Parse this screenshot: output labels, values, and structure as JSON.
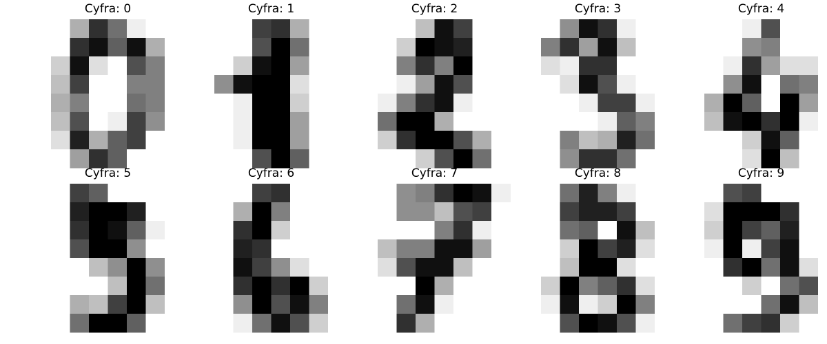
{
  "chart_data": {
    "type": "heatmap",
    "colormap": "gray_r",
    "value_range": [
      0,
      16
    ],
    "axes": "off",
    "grid": false,
    "layout": {
      "rows": 2,
      "cols": 5
    },
    "panels": [
      {
        "title": "Cyfra: 0",
        "pixels": [
          [
            0,
            0,
            5,
            13,
            9,
            1,
            0,
            0
          ],
          [
            0,
            0,
            13,
            15,
            10,
            15,
            5,
            0
          ],
          [
            0,
            3,
            15,
            2,
            0,
            11,
            8,
            0
          ],
          [
            0,
            4,
            12,
            0,
            0,
            8,
            8,
            0
          ],
          [
            0,
            5,
            8,
            0,
            0,
            9,
            8,
            0
          ],
          [
            0,
            4,
            11,
            0,
            1,
            12,
            7,
            0
          ],
          [
            0,
            2,
            14,
            5,
            10,
            12,
            0,
            0
          ],
          [
            0,
            0,
            6,
            13,
            10,
            0,
            0,
            0
          ]
        ]
      },
      {
        "title": "Cyfra: 1",
        "pixels": [
          [
            0,
            0,
            0,
            12,
            13,
            5,
            0,
            0
          ],
          [
            0,
            0,
            0,
            11,
            16,
            9,
            0,
            0
          ],
          [
            0,
            0,
            3,
            15,
            16,
            6,
            0,
            0
          ],
          [
            0,
            7,
            15,
            16,
            16,
            2,
            0,
            0
          ],
          [
            0,
            0,
            1,
            16,
            16,
            3,
            0,
            0
          ],
          [
            0,
            0,
            1,
            16,
            16,
            6,
            0,
            0
          ],
          [
            0,
            0,
            1,
            16,
            16,
            6,
            0,
            0
          ],
          [
            0,
            0,
            0,
            11,
            16,
            10,
            0,
            0
          ]
        ]
      },
      {
        "title": "Cyfra: 2",
        "pixels": [
          [
            0,
            0,
            0,
            4,
            15,
            12,
            0,
            0
          ],
          [
            0,
            0,
            3,
            16,
            15,
            14,
            0,
            0
          ],
          [
            0,
            0,
            8,
            13,
            8,
            16,
            0,
            0
          ],
          [
            0,
            0,
            1,
            6,
            15,
            11,
            0,
            0
          ],
          [
            0,
            1,
            8,
            13,
            15,
            1,
            0,
            0
          ],
          [
            0,
            9,
            16,
            16,
            5,
            0,
            0,
            0
          ],
          [
            0,
            3,
            13,
            16,
            16,
            11,
            5,
            0
          ],
          [
            0,
            0,
            0,
            3,
            11,
            16,
            9,
            0
          ]
        ]
      },
      {
        "title": "Cyfra: 3",
        "pixels": [
          [
            0,
            0,
            7,
            15,
            13,
            1,
            0,
            0
          ],
          [
            0,
            8,
            13,
            6,
            15,
            4,
            0,
            0
          ],
          [
            0,
            2,
            1,
            13,
            13,
            0,
            0,
            0
          ],
          [
            0,
            0,
            2,
            15,
            11,
            1,
            0,
            0
          ],
          [
            0,
            0,
            0,
            1,
            12,
            12,
            1,
            0
          ],
          [
            0,
            0,
            0,
            0,
            1,
            10,
            8,
            0
          ],
          [
            0,
            0,
            8,
            4,
            5,
            14,
            9,
            0
          ],
          [
            0,
            0,
            7,
            13,
            13,
            9,
            0,
            0
          ]
        ]
      },
      {
        "title": "Cyfra: 4",
        "pixels": [
          [
            0,
            0,
            0,
            1,
            11,
            0,
            0,
            0
          ],
          [
            0,
            0,
            0,
            7,
            8,
            0,
            0,
            0
          ],
          [
            0,
            0,
            1,
            13,
            6,
            2,
            2,
            0
          ],
          [
            0,
            0,
            7,
            15,
            0,
            9,
            8,
            0
          ],
          [
            0,
            5,
            16,
            10,
            0,
            16,
            6,
            0
          ],
          [
            0,
            4,
            15,
            16,
            13,
            16,
            1,
            0
          ],
          [
            0,
            0,
            0,
            3,
            15,
            10,
            0,
            0
          ],
          [
            0,
            0,
            0,
            2,
            16,
            4,
            0,
            0
          ]
        ]
      },
      {
        "title": "Cyfra: 5",
        "pixels": [
          [
            0,
            0,
            12,
            10,
            0,
            0,
            0,
            0
          ],
          [
            0,
            0,
            14,
            16,
            16,
            14,
            0,
            0
          ],
          [
            0,
            0,
            13,
            16,
            15,
            10,
            1,
            0
          ],
          [
            0,
            0,
            11,
            16,
            16,
            7,
            0,
            0
          ],
          [
            0,
            0,
            0,
            4,
            7,
            16,
            7,
            0
          ],
          [
            0,
            0,
            0,
            0,
            4,
            16,
            9,
            0
          ],
          [
            0,
            0,
            5,
            4,
            12,
            16,
            4,
            0
          ],
          [
            0,
            0,
            9,
            16,
            16,
            10,
            0,
            0
          ]
        ]
      },
      {
        "title": "Cyfra: 6",
        "pixels": [
          [
            0,
            0,
            0,
            12,
            13,
            0,
            0,
            0
          ],
          [
            0,
            0,
            5,
            16,
            8,
            0,
            0,
            0
          ],
          [
            0,
            0,
            13,
            16,
            3,
            0,
            0,
            0
          ],
          [
            0,
            0,
            14,
            13,
            0,
            0,
            0,
            0
          ],
          [
            0,
            0,
            15,
            12,
            7,
            2,
            0,
            0
          ],
          [
            0,
            0,
            13,
            16,
            13,
            16,
            3,
            0
          ],
          [
            0,
            0,
            7,
            16,
            11,
            15,
            8,
            0
          ],
          [
            0,
            0,
            1,
            9,
            15,
            11,
            3,
            0
          ]
        ]
      },
      {
        "title": "Cyfra: 7",
        "pixels": [
          [
            0,
            0,
            7,
            8,
            13,
            16,
            15,
            1
          ],
          [
            0,
            0,
            7,
            7,
            4,
            11,
            12,
            0
          ],
          [
            0,
            0,
            0,
            0,
            8,
            13,
            1,
            0
          ],
          [
            0,
            4,
            8,
            8,
            15,
            15,
            6,
            0
          ],
          [
            0,
            2,
            11,
            15,
            15,
            4,
            0,
            0
          ],
          [
            0,
            0,
            0,
            16,
            5,
            0,
            0,
            0
          ],
          [
            0,
            0,
            9,
            15,
            1,
            0,
            0,
            0
          ],
          [
            0,
            0,
            13,
            5,
            0,
            0,
            0,
            0
          ]
        ]
      },
      {
        "title": "Cyfra: 8",
        "pixels": [
          [
            0,
            0,
            9,
            14,
            8,
            1,
            0,
            0
          ],
          [
            0,
            0,
            12,
            14,
            14,
            12,
            0,
            0
          ],
          [
            0,
            0,
            9,
            10,
            0,
            15,
            4,
            0
          ],
          [
            0,
            0,
            3,
            16,
            12,
            14,
            2,
            0
          ],
          [
            0,
            0,
            4,
            16,
            16,
            2,
            0,
            0
          ],
          [
            0,
            3,
            16,
            8,
            10,
            13,
            2,
            0
          ],
          [
            0,
            1,
            15,
            1,
            3,
            16,
            8,
            0
          ],
          [
            0,
            0,
            11,
            16,
            15,
            11,
            1,
            0
          ]
        ]
      },
      {
        "title": "Cyfra: 9",
        "pixels": [
          [
            0,
            0,
            11,
            12,
            0,
            0,
            0,
            0
          ],
          [
            0,
            2,
            16,
            16,
            16,
            13,
            0,
            0
          ],
          [
            0,
            3,
            16,
            12,
            10,
            14,
            0,
            0
          ],
          [
            0,
            1,
            16,
            1,
            12,
            15,
            0,
            0
          ],
          [
            0,
            0,
            13,
            16,
            9,
            15,
            2,
            0
          ],
          [
            0,
            0,
            0,
            3,
            0,
            9,
            11,
            0
          ],
          [
            0,
            0,
            0,
            0,
            9,
            15,
            4,
            0
          ],
          [
            0,
            0,
            9,
            12,
            13,
            3,
            0,
            0
          ]
        ]
      }
    ]
  }
}
